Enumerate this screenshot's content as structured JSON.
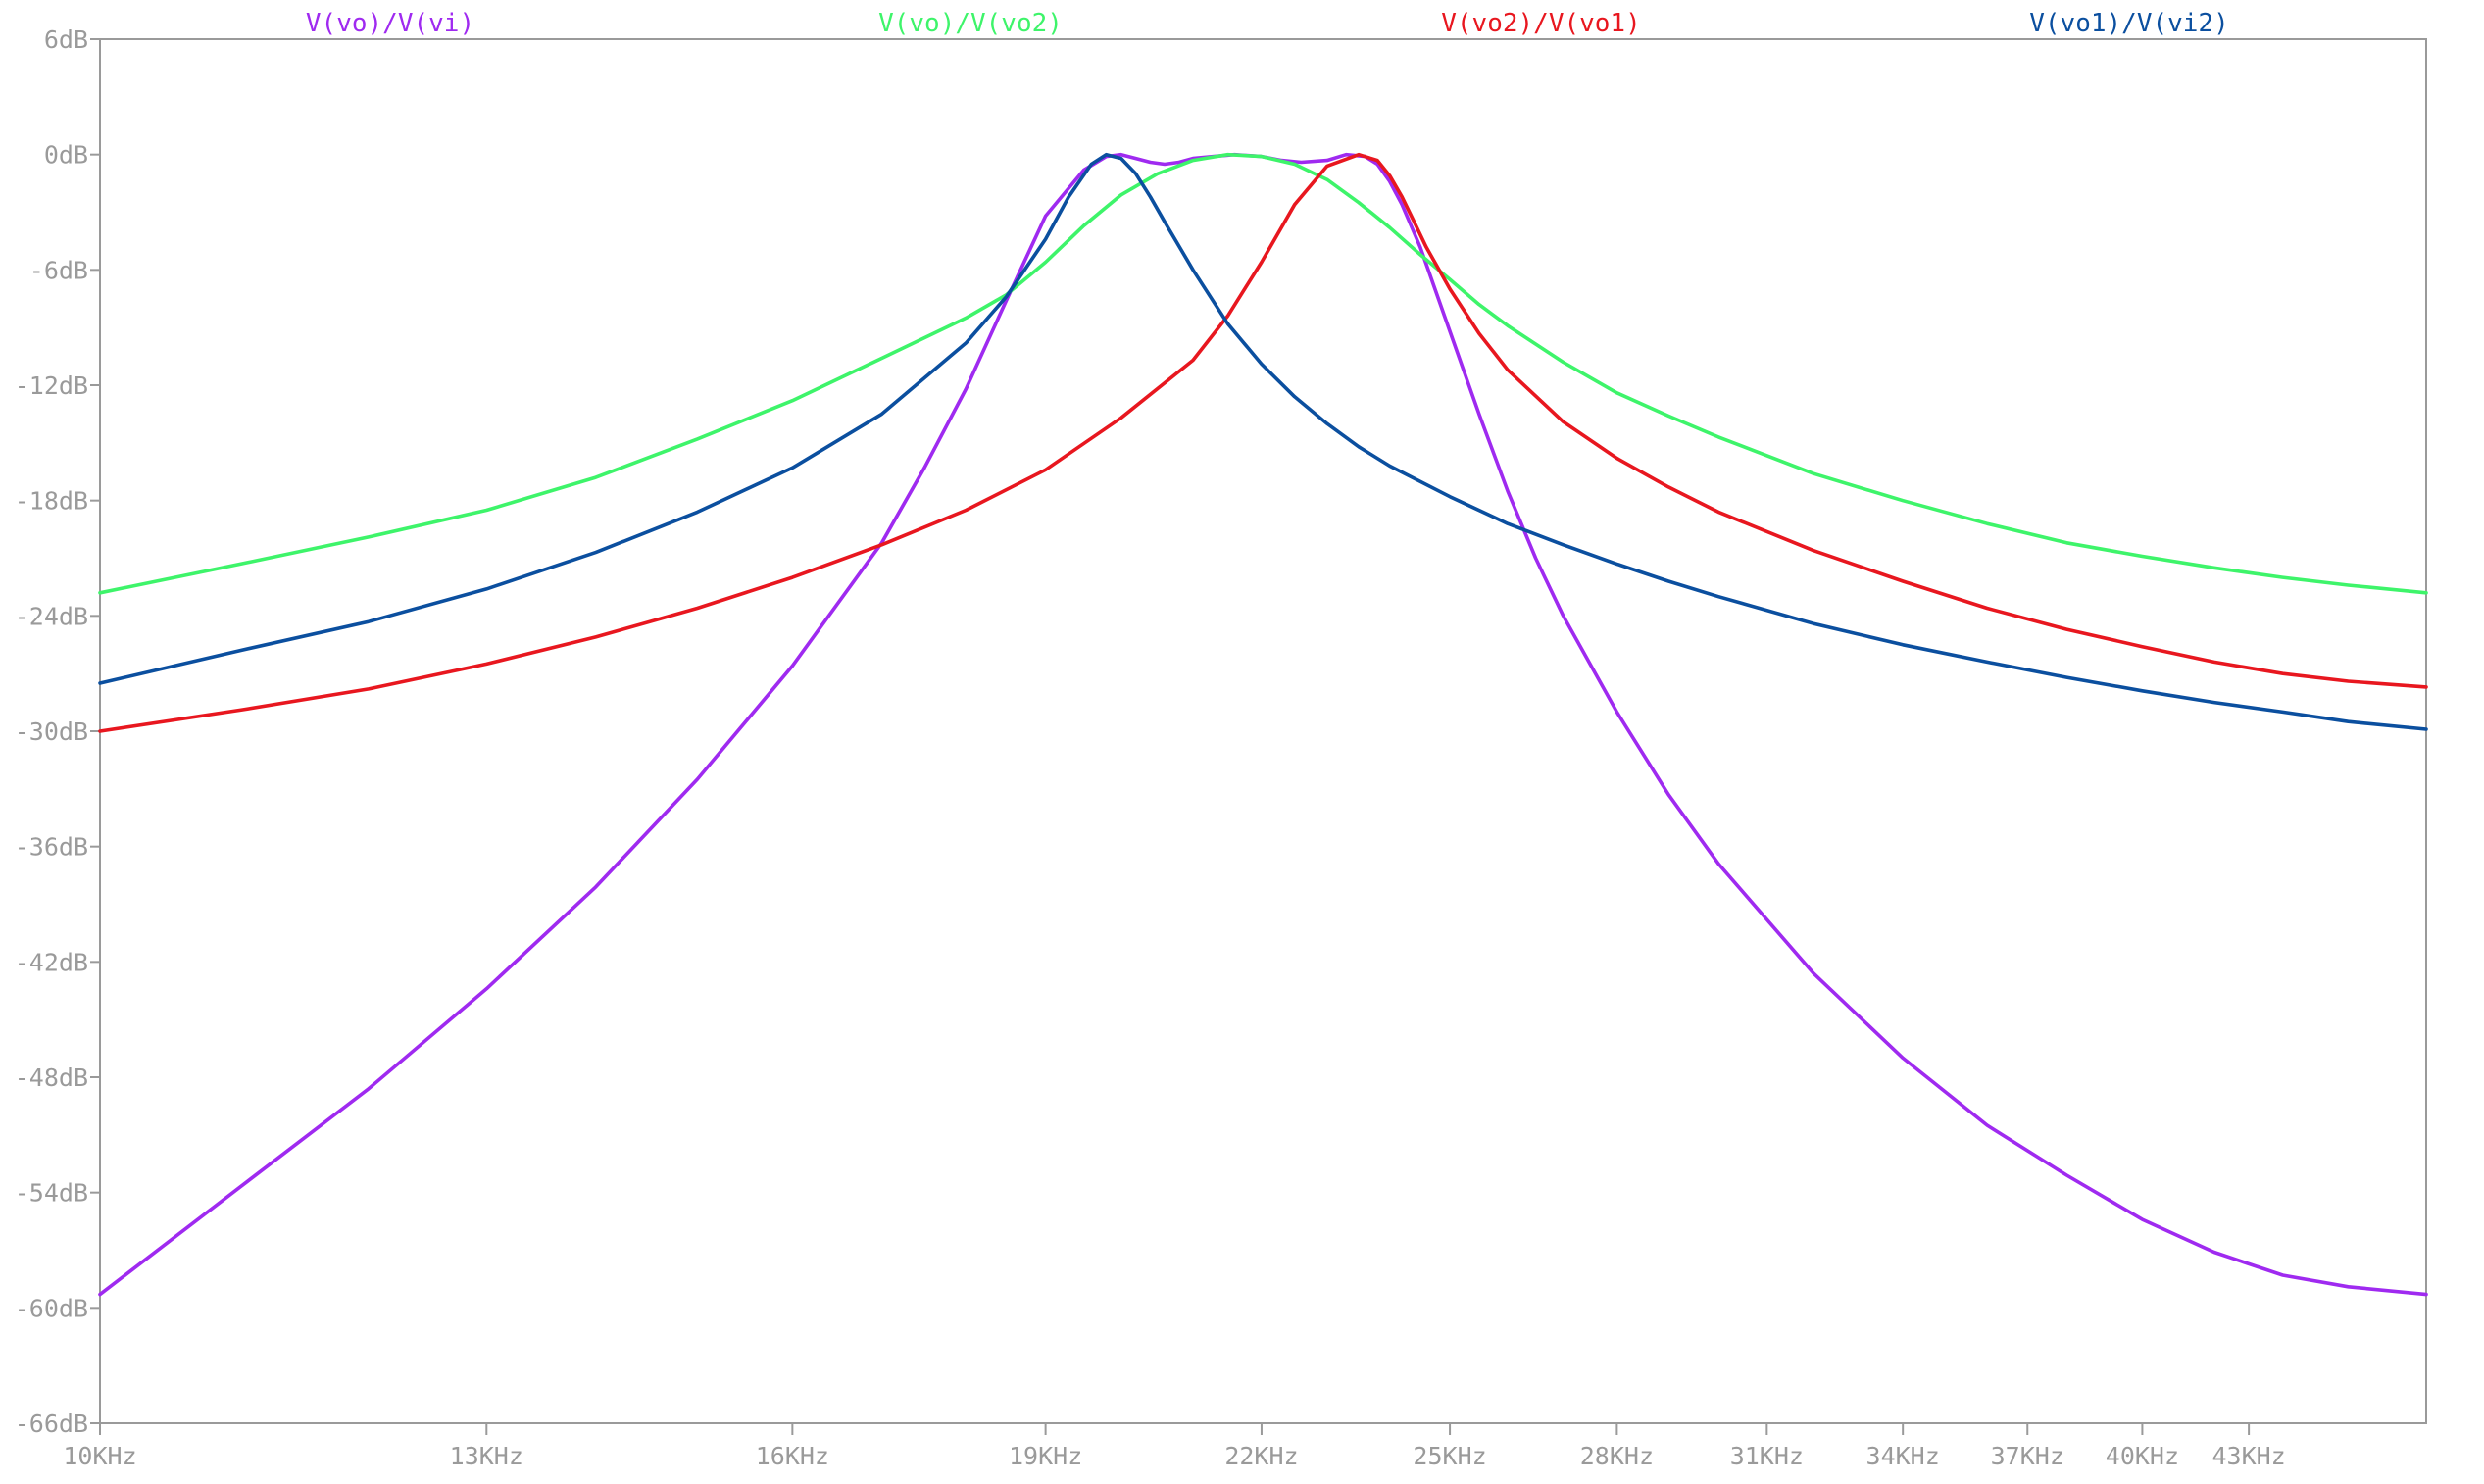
{
  "chart_data": {
    "type": "line",
    "title": "",
    "xlabel": "",
    "ylabel": "",
    "x_scale": "log",
    "xlim_hz": [
      10000,
      48500
    ],
    "ylim": [
      -66,
      6
    ],
    "x_ticks": [
      {
        "value": 10000,
        "label": "10KHz"
      },
      {
        "value": 13000,
        "label": "13KHz"
      },
      {
        "value": 16000,
        "label": "16KHz"
      },
      {
        "value": 19000,
        "label": "19KHz"
      },
      {
        "value": 22000,
        "label": "22KHz"
      },
      {
        "value": 25000,
        "label": "25KHz"
      },
      {
        "value": 28000,
        "label": "28KHz"
      },
      {
        "value": 31000,
        "label": "31KHz"
      },
      {
        "value": 34000,
        "label": "34KHz"
      },
      {
        "value": 37000,
        "label": "37KHz"
      },
      {
        "value": 40000,
        "label": "40KHz"
      },
      {
        "value": 43000,
        "label": "43KHz"
      }
    ],
    "y_ticks": [
      {
        "value": 6,
        "label": "6dB"
      },
      {
        "value": 0,
        "label": "0dB"
      },
      {
        "value": -6,
        "label": "-6dB"
      },
      {
        "value": -12,
        "label": "-12dB"
      },
      {
        "value": -18,
        "label": "-18dB"
      },
      {
        "value": -24,
        "label": "-24dB"
      },
      {
        "value": -30,
        "label": "-30dB"
      },
      {
        "value": -36,
        "label": "-36dB"
      },
      {
        "value": -42,
        "label": "-42dB"
      },
      {
        "value": -48,
        "label": "-48dB"
      },
      {
        "value": -54,
        "label": "-54dB"
      },
      {
        "value": -60,
        "label": "-60dB"
      },
      {
        "value": -66,
        "label": "-66dB"
      }
    ],
    "grid": false,
    "legend_position": "top",
    "series": [
      {
        "name": "V(vo)/V(vi)",
        "color": "#9f2af0",
        "x_hz": [
          10000,
          11000,
          12000,
          13000,
          14000,
          15000,
          16000,
          17000,
          17500,
          18000,
          18500,
          19000,
          19500,
          19800,
          20000,
          20200,
          20400,
          20600,
          20800,
          21000,
          21300,
          21600,
          22000,
          22300,
          22600,
          23000,
          23300,
          23600,
          23800,
          24000,
          24200,
          24500,
          25000,
          25500,
          26000,
          26500,
          27000,
          28000,
          29000,
          30000,
          32000,
          34000,
          36000,
          38000,
          40000,
          42000,
          44000,
          46000,
          48500
        ],
        "y_db": [
          -59.3,
          -53.7,
          -48.6,
          -43.4,
          -38.1,
          -32.5,
          -26.6,
          -20.2,
          -16.3,
          -12.2,
          -7.6,
          -3.2,
          -0.8,
          -0.1,
          0.0,
          -0.2,
          -0.4,
          -0.5,
          -0.4,
          -0.2,
          -0.1,
          0.0,
          -0.1,
          -0.3,
          -0.4,
          -0.3,
          0.0,
          -0.1,
          -0.5,
          -1.4,
          -2.6,
          -4.8,
          -9.2,
          -13.5,
          -17.5,
          -21.0,
          -24.0,
          -29.0,
          -33.3,
          -36.9,
          -42.6,
          -47.0,
          -50.5,
          -53.1,
          -55.4,
          -57.1,
          -58.3,
          -58.9,
          -59.3
        ]
      },
      {
        "name": "V(vo)/V(vo2)",
        "color": "#3ef46a",
        "x_hz": [
          10000,
          11000,
          12000,
          13000,
          14000,
          15000,
          16000,
          17000,
          18000,
          18500,
          19000,
          19500,
          20000,
          20500,
          21000,
          21500,
          22000,
          22500,
          23000,
          23500,
          24000,
          24500,
          25000,
          25500,
          26000,
          27000,
          28000,
          29000,
          30000,
          32000,
          34000,
          36000,
          38000,
          40000,
          42000,
          44000,
          46000,
          48500
        ],
        "y_db": [
          -22.8,
          -21.3,
          -19.9,
          -18.5,
          -16.8,
          -14.8,
          -12.8,
          -10.6,
          -8.5,
          -7.3,
          -5.6,
          -3.7,
          -2.1,
          -1.0,
          -0.3,
          0.0,
          -0.1,
          -0.5,
          -1.3,
          -2.5,
          -3.8,
          -5.2,
          -6.5,
          -7.8,
          -8.9,
          -10.8,
          -12.4,
          -13.6,
          -14.7,
          -16.6,
          -18.0,
          -19.2,
          -20.2,
          -20.9,
          -21.5,
          -22.0,
          -22.4,
          -22.8
        ]
      },
      {
        "name": "V(vo2)/V(vo1)",
        "color": "#e8171f",
        "x_hz": [
          10000,
          11000,
          12000,
          13000,
          14000,
          15000,
          16000,
          17000,
          18000,
          19000,
          20000,
          21000,
          21500,
          22000,
          22500,
          23000,
          23500,
          23800,
          24000,
          24200,
          24400,
          24600,
          24800,
          25000,
          25500,
          26000,
          27000,
          28000,
          29000,
          30000,
          32000,
          34000,
          36000,
          38000,
          40000,
          42000,
          44000,
          46000,
          48500
        ],
        "y_db": [
          -30.0,
          -28.9,
          -27.8,
          -26.5,
          -25.1,
          -23.6,
          -22.0,
          -20.3,
          -18.5,
          -16.4,
          -13.7,
          -10.7,
          -8.4,
          -5.6,
          -2.6,
          -0.6,
          0.0,
          -0.3,
          -1.1,
          -2.2,
          -3.5,
          -4.8,
          -5.9,
          -7.0,
          -9.3,
          -11.2,
          -13.9,
          -15.8,
          -17.3,
          -18.6,
          -20.6,
          -22.2,
          -23.6,
          -24.7,
          -25.6,
          -26.4,
          -27.0,
          -27.4,
          -27.7
        ]
      },
      {
        "name": "V(vo1)/V(vi2)",
        "color": "#0b4f9f",
        "x_hz": [
          10000,
          11000,
          12000,
          13000,
          14000,
          15000,
          16000,
          17000,
          18000,
          18500,
          19000,
          19300,
          19600,
          19800,
          20000,
          20200,
          20400,
          20600,
          21000,
          21500,
          22000,
          22500,
          23000,
          23500,
          24000,
          25000,
          26000,
          27000,
          28000,
          29000,
          30000,
          32000,
          34000,
          36000,
          38000,
          40000,
          42000,
          44000,
          46000,
          48500
        ],
        "y_db": [
          -27.5,
          -25.8,
          -24.3,
          -22.6,
          -20.7,
          -18.6,
          -16.3,
          -13.5,
          -9.8,
          -7.4,
          -4.4,
          -2.2,
          -0.5,
          0.0,
          -0.2,
          -1.0,
          -2.2,
          -3.5,
          -6.0,
          -8.8,
          -10.9,
          -12.6,
          -14.0,
          -15.2,
          -16.2,
          -17.8,
          -19.2,
          -20.3,
          -21.3,
          -22.2,
          -23.0,
          -24.4,
          -25.5,
          -26.4,
          -27.2,
          -27.9,
          -28.5,
          -29.0,
          -29.5,
          -29.9
        ]
      }
    ]
  }
}
